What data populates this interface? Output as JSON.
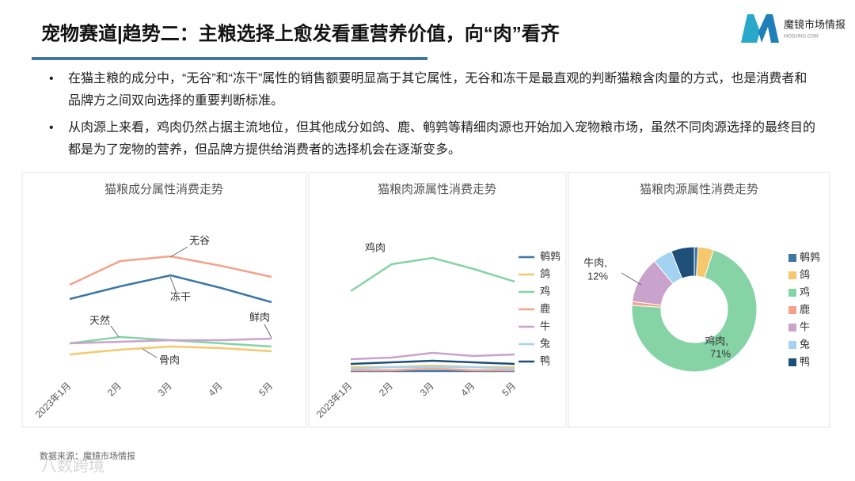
{
  "header": {
    "title": "宠物赛道|趋势二：主粮选择上愈发看重营养价值，向“肉”看齐",
    "logo_name": "魔镜市场情报",
    "logo_site": "MOOJING.COM"
  },
  "bullets": [
    "在猫主粮的成分中，“无谷”和“冻干”属性的销售额要明显高于其它属性，无谷和冻干是最直观的判断猫粮含肉量的方式，也是消费者和品牌方之间双向选择的重要判断标准。",
    "从肉源上来看，鸡肉仍然占据主流地位，但其他成分如鸽、鹿、鹌鹑等精细肉源也开始加入宠物粮市场，虽然不同肉源选择的最终目的都是为了宠物的营养，但品牌方提供给消费者的选择机会在逐渐变多。"
  ],
  "footer": {
    "source": "数据来源：魔镜市场情报",
    "watermark": "八数跨境"
  },
  "chart_data": [
    {
      "type": "line",
      "title": "猫粮成分属性消费走势",
      "categories": [
        "2023年1月",
        "2月",
        "3月",
        "4月",
        "5月"
      ],
      "ylim": [
        0,
        100
      ],
      "series": [
        {
          "name": "无谷",
          "color": "#f4a28c",
          "values": [
            55,
            70,
            73,
            67,
            60
          ]
        },
        {
          "name": "冻干",
          "color": "#3e77a3",
          "values": [
            46,
            54,
            61,
            53,
            44
          ]
        },
        {
          "name": "天然",
          "color": "#86d3a6",
          "values": [
            18,
            22,
            20,
            18,
            16
          ]
        },
        {
          "name": "鲜肉",
          "color": "#c9a3cb",
          "values": [
            18,
            19,
            20,
            20,
            21
          ]
        },
        {
          "name": "骨肉",
          "color": "#f6c86e",
          "values": [
            11,
            14,
            16,
            15,
            13
          ]
        }
      ]
    },
    {
      "type": "line",
      "title": "猫粮肉源属性消费走势",
      "categories": [
        "2023年1月",
        "2月",
        "3月",
        "4月",
        "5月"
      ],
      "ylim": [
        0,
        100
      ],
      "annotation": "鸡肉",
      "series": [
        {
          "name": "鹌鹑",
          "color": "#3e77a3",
          "values": [
            0.5,
            0.5,
            0.5,
            0.5,
            0.5
          ]
        },
        {
          "name": "鸽",
          "color": "#f6c86e",
          "values": [
            3,
            3,
            4,
            3,
            3
          ]
        },
        {
          "name": "鸡",
          "color": "#86d3a6",
          "values": [
            51,
            68,
            72,
            65,
            57
          ]
        },
        {
          "name": "鹿",
          "color": "#f4a28c",
          "values": [
            1,
            1,
            2,
            1,
            1
          ]
        },
        {
          "name": "牛",
          "color": "#c9a3cb",
          "values": [
            8,
            9,
            12,
            10,
            11
          ]
        },
        {
          "name": "兔",
          "color": "#a3d3f0",
          "values": [
            2,
            3,
            3,
            3,
            2
          ]
        },
        {
          "name": "鸭",
          "color": "#1f4e79",
          "values": [
            5,
            6,
            7,
            6,
            5
          ]
        }
      ]
    },
    {
      "type": "pie",
      "title": "猫粮肉源属性消费走势",
      "categories": [
        "鹌鹑",
        "鸽",
        "鸡",
        "鹿",
        "牛",
        "兔",
        "鸭"
      ],
      "values": [
        1,
        4,
        71,
        1,
        12,
        5,
        6
      ],
      "colors": [
        "#3e77a3",
        "#f6c86e",
        "#86d3a6",
        "#f4a28c",
        "#c9a3cb",
        "#a3d3f0",
        "#1f4e79"
      ],
      "label_names": [
        null,
        null,
        "鸡肉,",
        null,
        "牛肉,",
        null,
        null
      ],
      "value_labels": [
        null,
        null,
        "71%",
        null,
        "12%",
        null,
        null
      ]
    }
  ]
}
